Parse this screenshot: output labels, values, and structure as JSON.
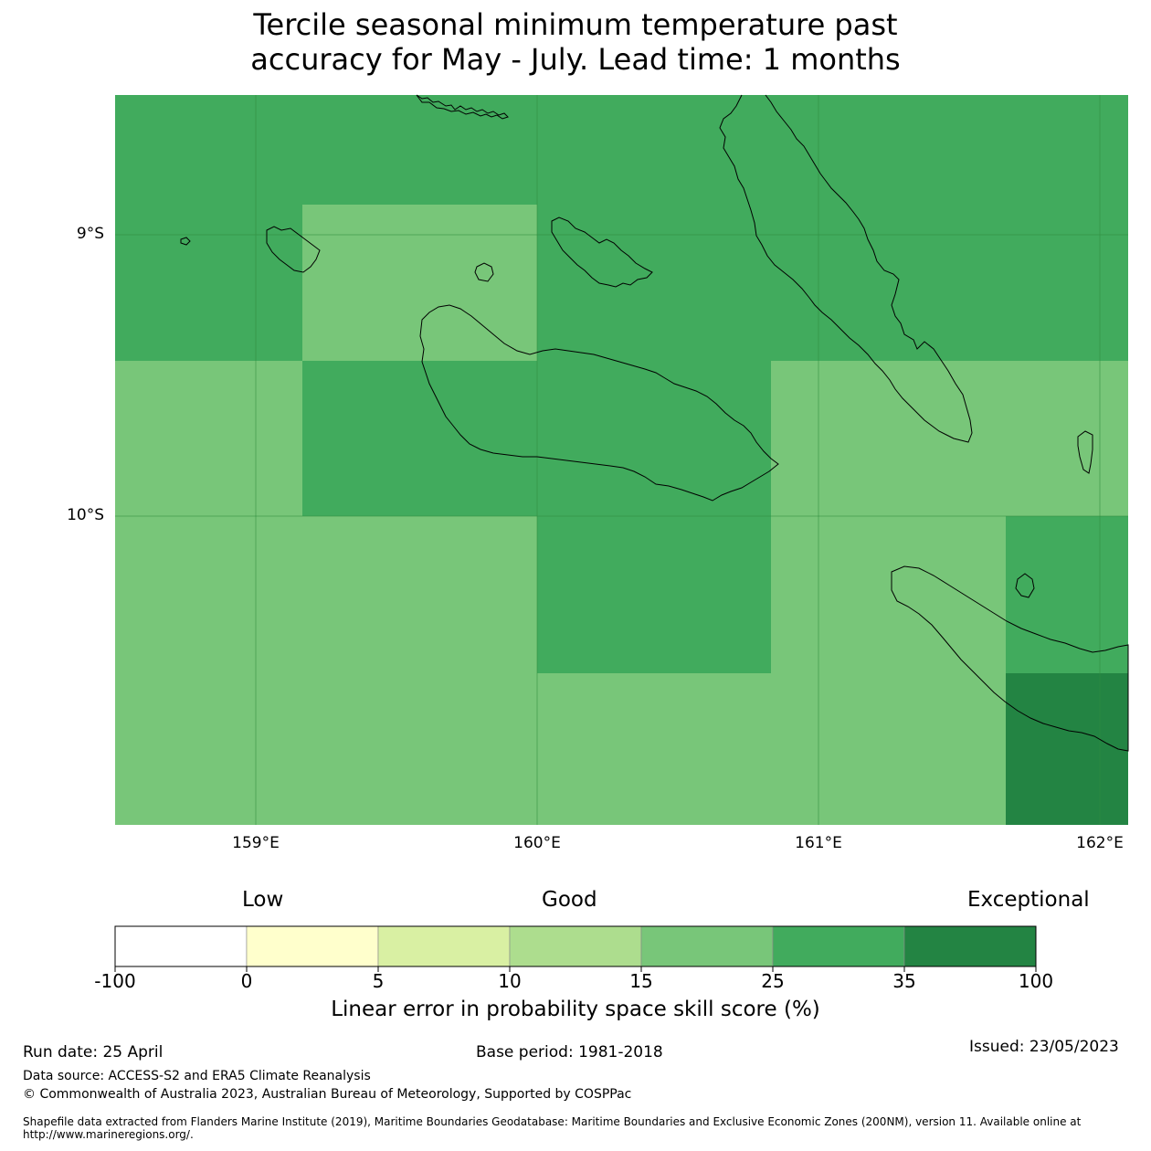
{
  "title": {
    "line1": "Tercile seasonal minimum temperature past",
    "line2": "accuracy for May - July. Lead time: 1 months"
  },
  "map": {
    "y_ticks": [
      "9°S",
      "10°S"
    ],
    "x_ticks": [
      "159°E",
      "160°E",
      "161°E",
      "162°E"
    ],
    "colors": {
      "c15_25": "#78c679",
      "c25_35": "#41ab5d",
      "c35_100": "#238443",
      "coast": "#000000"
    },
    "grid": [
      [
        "c25_35",
        "c25_35",
        "c25_35",
        "c25_35",
        "c25_35"
      ],
      [
        "c25_35",
        "c15_25",
        "c25_35",
        "c25_35",
        "c25_35"
      ],
      [
        "c15_25",
        "c25_35",
        "c25_35",
        "c15_25",
        "c15_25"
      ],
      [
        "c15_25",
        "c15_25",
        "c25_35",
        "c15_25",
        "c25_35"
      ],
      [
        "c15_25",
        "c15_25",
        "c15_25",
        "c15_25",
        "c35_100"
      ]
    ]
  },
  "colorbar": {
    "categories": [
      "Low",
      "Good",
      "Exceptional"
    ],
    "ticks": [
      "-100",
      "0",
      "5",
      "10",
      "15",
      "25",
      "35",
      "100"
    ],
    "colors": [
      "#ffffff",
      "#ffffcc",
      "#d9f0a3",
      "#addd8e",
      "#78c679",
      "#41ab5d",
      "#238443"
    ],
    "label": "Linear error in probability space skill score (%)"
  },
  "footer": {
    "run_date": "Run date: 25 April",
    "base_period": "Base period: 1981-2018",
    "issued": "Issued: 23/05/2023",
    "data_source": "Data source: ACCESS-S2 and ERA5 Climate Reanalysis",
    "copyright": "© Commonwealth of Australia 2023, Australian Bureau of Meteorology, Supported by COSPPac",
    "shapefile": "Shapefile data extracted from Flanders Marine Institute (2019), Maritime Boundaries Geodatabase: Maritime Boundaries and Exclusive Economic Zones (200NM), version 11. Available online at http://www.marineregions.org/."
  }
}
